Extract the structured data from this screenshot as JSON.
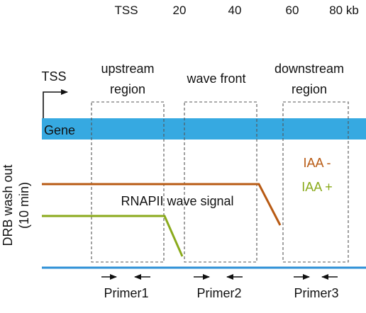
{
  "scale": {
    "labels": [
      "TSS",
      "20",
      "40",
      "60",
      "80 kb"
    ]
  },
  "tss_label": "TSS",
  "regions": {
    "upstream": [
      "upstream",
      "region"
    ],
    "wave_front": "wave front",
    "downstream": [
      "downstream",
      "region"
    ]
  },
  "gene": {
    "label": "Gene",
    "color": "#36a9e1"
  },
  "y_axis_label": [
    "DRB wash out",
    "(10 min)"
  ],
  "signal_label": "RNAPII wave signal",
  "legend": {
    "iaa_minus": {
      "label": "IAA -",
      "color": "#b85a13"
    },
    "iaa_plus": {
      "label": "IAA +",
      "color": "#8aaa1b"
    }
  },
  "baseline_color": "#2c8fd6",
  "primers": [
    "Primer1",
    "Primer2",
    "Primer3"
  ]
}
